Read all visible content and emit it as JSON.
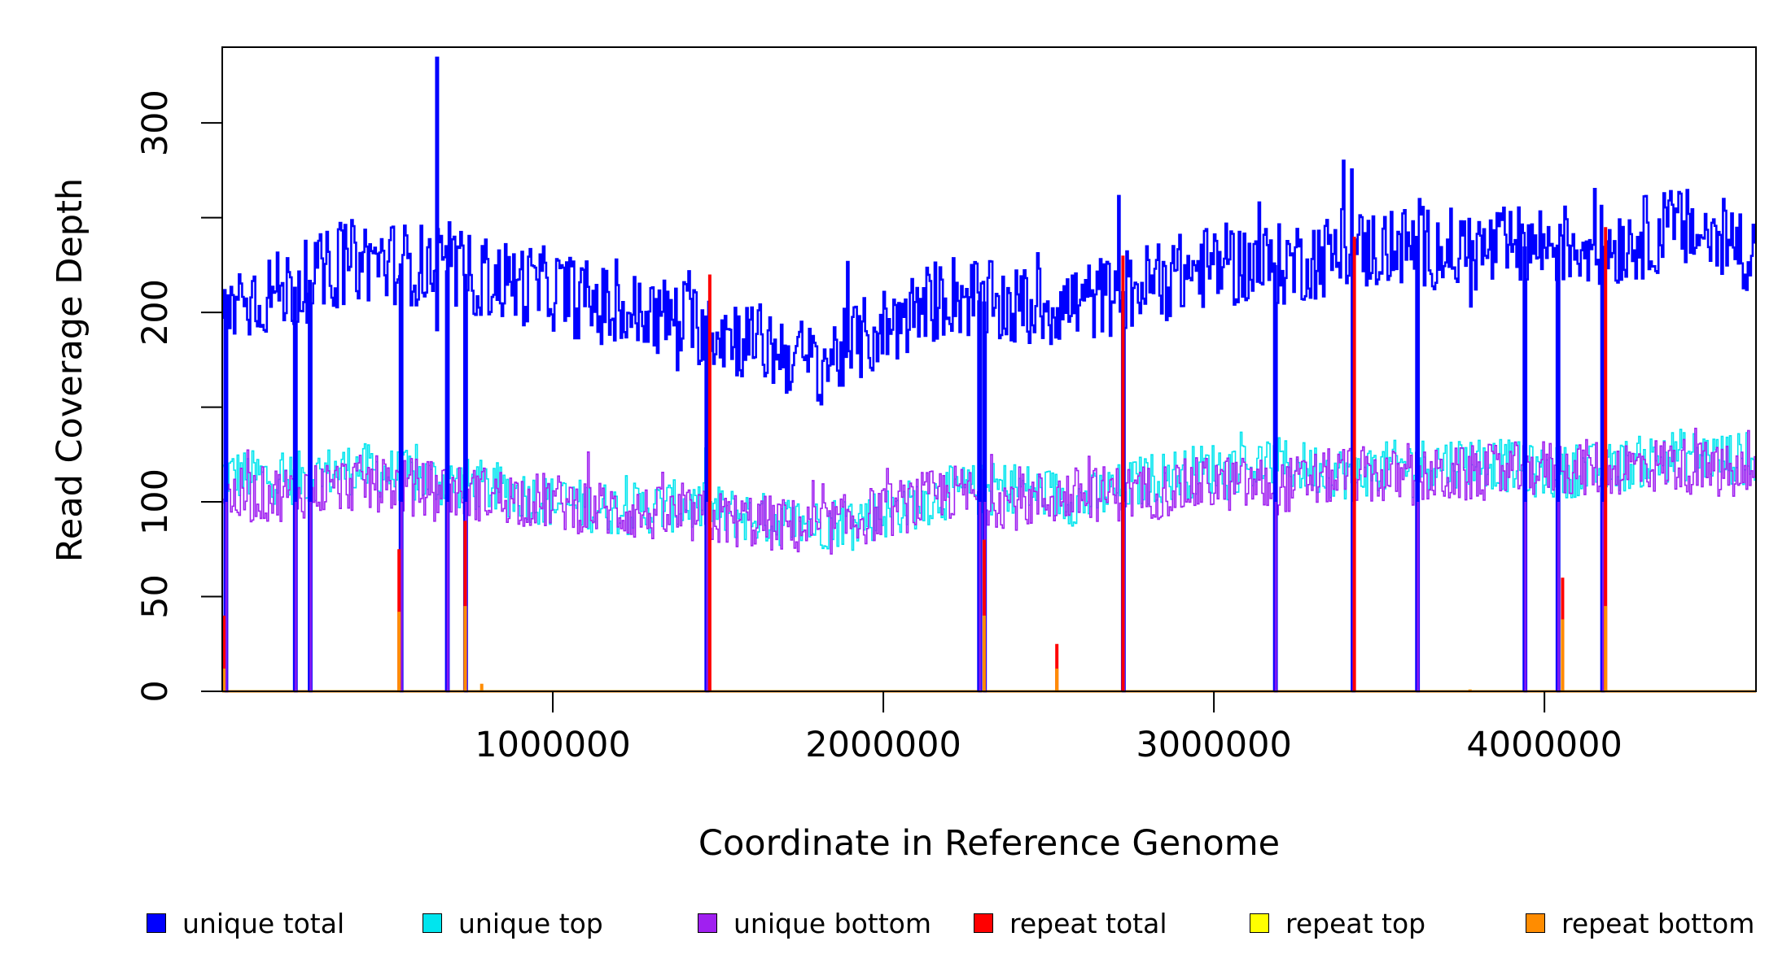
{
  "chart_data": {
    "type": "line",
    "title": "",
    "xlabel": "Coordinate in Reference Genome",
    "ylabel": "Read Coverage Depth",
    "xlim": [
      0,
      4640000
    ],
    "ylim": [
      0,
      340
    ],
    "x_ticks": [
      1000000,
      2000000,
      3000000,
      4000000
    ],
    "x_tick_labels": [
      "1000000",
      "2000000",
      "3000000",
      "4000000"
    ],
    "y_ticks": [
      0,
      50,
      100,
      150,
      200,
      250,
      300
    ],
    "y_tick_labels": [
      "0",
      "50",
      "100",
      "",
      "200",
      "",
      "300"
    ],
    "grid": false,
    "legend_position": "bottom",
    "colors": {
      "unique_total": "#0000ff",
      "unique_top": "#00e5ee",
      "unique_bottom": "#a020f0",
      "repeat_total": "#ff0000",
      "repeat_top": "#ffff00",
      "repeat_bottom": "#ff8c00"
    },
    "series": [
      {
        "name": "unique total",
        "color": "#0000ff",
        "x": [
          0,
          200000,
          400000,
          600000,
          800000,
          1000000,
          1200000,
          1400000,
          1600000,
          1800000,
          2000000,
          2200000,
          2400000,
          2600000,
          2800000,
          3000000,
          3200000,
          3400000,
          3600000,
          3800000,
          4000000,
          4200000,
          4400000,
          4640000
        ],
        "values": [
          205,
          212,
          228,
          225,
          218,
          212,
          200,
          196,
          185,
          172,
          192,
          210,
          202,
          205,
          215,
          225,
          225,
          232,
          235,
          232,
          236,
          235,
          245,
          232
        ]
      },
      {
        "name": "unique top",
        "color": "#00e5ee",
        "x": [
          0,
          200000,
          400000,
          600000,
          800000,
          1000000,
          1200000,
          1400000,
          1600000,
          1800000,
          2000000,
          2200000,
          2400000,
          2600000,
          2800000,
          3000000,
          3200000,
          3400000,
          3600000,
          3800000,
          4000000,
          4200000,
          4400000,
          4640000
        ],
        "values": [
          115,
          112,
          118,
          112,
          108,
          100,
          96,
          98,
          92,
          88,
          94,
          105,
          108,
          100,
          112,
          118,
          120,
          115,
          120,
          122,
          115,
          118,
          125,
          122
        ]
      },
      {
        "name": "unique bottom",
        "color": "#a020f0",
        "x": [
          0,
          200000,
          400000,
          600000,
          800000,
          1000000,
          1200000,
          1400000,
          1600000,
          1800000,
          2000000,
          2200000,
          2400000,
          2600000,
          2800000,
          3000000,
          3200000,
          3400000,
          3600000,
          3800000,
          4000000,
          4200000,
          4400000,
          4640000
        ],
        "values": [
          102,
          105,
          110,
          108,
          104,
          100,
          95,
          92,
          90,
          85,
          95,
          105,
          100,
          104,
          105,
          110,
          108,
          115,
          112,
          115,
          118,
          118,
          120,
          112
        ]
      },
      {
        "name": "repeat total",
        "color": "#ff0000",
        "x": [
          0,
          530000,
          730000,
          1470000,
          2300000,
          2520000,
          2720000,
          3420000,
          4050000,
          4180000
        ],
        "values": [
          40,
          75,
          90,
          220,
          80,
          25,
          230,
          240,
          60,
          245
        ]
      },
      {
        "name": "repeat top",
        "color": "#ffff00",
        "x": [],
        "values": []
      },
      {
        "name": "repeat bottom",
        "color": "#ff8c00",
        "x": [
          0,
          530000,
          730000,
          780000,
          2300000,
          2520000,
          3770000,
          4050000,
          4180000
        ],
        "values": [
          12,
          42,
          45,
          4,
          40,
          12,
          1,
          38,
          45
        ]
      }
    ],
    "dropouts": [
      10000,
      220000,
      265000,
      540000,
      680000,
      735000,
      1465000,
      2290000,
      2305000,
      2725000,
      3185000,
      3420000,
      3615000,
      3940000,
      4040000,
      4175000
    ]
  },
  "legend": {
    "items": [
      {
        "label": "unique total",
        "color": "#0000ff"
      },
      {
        "label": "unique top",
        "color": "#00e5ee"
      },
      {
        "label": "unique bottom",
        "color": "#a020f0"
      },
      {
        "label": "repeat total",
        "color": "#ff0000"
      },
      {
        "label": "repeat top",
        "color": "#ffff00"
      },
      {
        "label": "repeat bottom",
        "color": "#ff8c00"
      }
    ]
  }
}
